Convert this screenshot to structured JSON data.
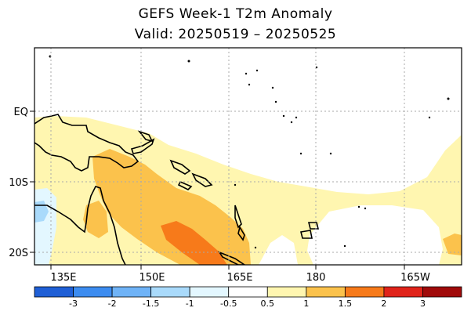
{
  "title": "GEFS Week-1 T2m Anomaly",
  "subtitle": "Valid: 20250519 – 20250525",
  "lat_labels": [
    "EQ",
    "10S",
    "20S"
  ],
  "lon_labels": [
    "135E",
    "150E",
    "165E",
    "180",
    "165W"
  ],
  "colorbar": {
    "labels": [
      "-3",
      "-2",
      "-1.5",
      "-1",
      "-0.5",
      "0.5",
      "1",
      "1.5",
      "2",
      "3"
    ],
    "colors": [
      "#1f5fd6",
      "#3c8cf0",
      "#6fb3f7",
      "#a9dafb",
      "#e3f7ff",
      "#ffffff",
      "#fff6b0",
      "#fbc24c",
      "#f77a1a",
      "#e0231a",
      "#a00a0a"
    ]
  },
  "anomaly_colors": {
    "light_warm": "#fff6b0",
    "moderate_warm": "#fbc24c",
    "strong_warm": "#f77a1a",
    "light_cool": "#e3f7ff",
    "moderate_cool": "#a9dafb"
  }
}
